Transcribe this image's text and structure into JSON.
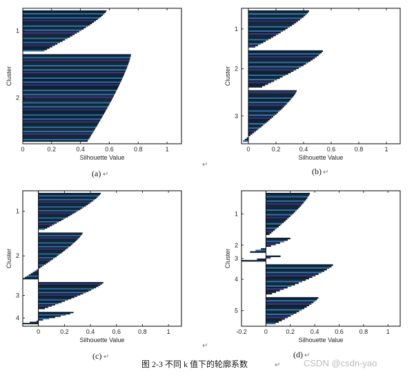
{
  "caption": "图 2-3  不同 k 值下的轮廓系数",
  "watermark": "CSDN @csdn-yao",
  "return_mark": "↵",
  "colors": {
    "bar_dark": "#0e2233",
    "bar_blue": "#2d6ea6",
    "bar_purple": "#3a2f7a",
    "axis": "#000000"
  },
  "chart_data": [
    {
      "type": "bar",
      "panel_label": "(a)",
      "xlabel": "Silhouette Value",
      "ylabel": "Cluster",
      "xlim": [
        0,
        1.1
      ],
      "xticks": [
        0,
        0.2,
        0.4,
        0.6,
        0.8,
        1
      ],
      "grid": false,
      "clusters": [
        {
          "label": "1",
          "size": 30,
          "max": 0.58,
          "min": 0.15
        },
        {
          "label": "2",
          "size": 64,
          "max": 0.75,
          "min": 0.45
        }
      ]
    },
    {
      "type": "bar",
      "panel_label": "(b)",
      "xlabel": "Silhouette Value",
      "ylabel": "Cluster",
      "xlim": [
        -0.05,
        1.1
      ],
      "xticks": [
        0,
        0.2,
        0.4,
        0.6,
        0.8,
        1
      ],
      "grid": false,
      "clusters": [
        {
          "label": "1",
          "size": 26,
          "max": 0.44,
          "min": 0.05
        },
        {
          "label": "2",
          "size": 26,
          "max": 0.54,
          "min": 0.1
        },
        {
          "label": "3",
          "size": 36,
          "max": 0.35,
          "min": -0.04
        }
      ]
    },
    {
      "type": "bar",
      "panel_label": "(c)",
      "xlabel": "Silhouette Value",
      "ylabel": "Cluster",
      "xlim": [
        -0.12,
        1.1
      ],
      "xticks": [
        0,
        0.2,
        0.4,
        0.6,
        0.8,
        1
      ],
      "grid": false,
      "clusters": [
        {
          "label": "1",
          "size": 30,
          "max": 0.48,
          "min": 0.05
        },
        {
          "label": "2",
          "size": 38,
          "max": 0.34,
          "min": -0.12
        },
        {
          "label": "3",
          "size": 22,
          "max": 0.5,
          "min": 0.05
        },
        {
          "label": "4",
          "size": 10,
          "max": 0.27,
          "min": -0.12
        }
      ]
    },
    {
      "type": "bar",
      "panel_label": "(d)",
      "xlabel": "Silhouette Value",
      "ylabel": "Cluster",
      "xlim": [
        -0.2,
        1.1
      ],
      "xticks": [
        -0.2,
        0,
        0.2,
        0.4,
        0.6,
        0.8,
        1
      ],
      "grid": false,
      "clusters": [
        {
          "label": "1",
          "size": 28,
          "max": 0.36,
          "min": 0.03
        },
        {
          "label": "2",
          "size": 10,
          "max": 0.2,
          "min": -0.13
        },
        {
          "label": "3",
          "size": 4,
          "max": 0.12,
          "min": -0.2
        },
        {
          "label": "4",
          "size": 20,
          "max": 0.55,
          "min": 0.05
        },
        {
          "label": "5",
          "size": 18,
          "max": 0.43,
          "min": 0.08
        }
      ]
    }
  ]
}
